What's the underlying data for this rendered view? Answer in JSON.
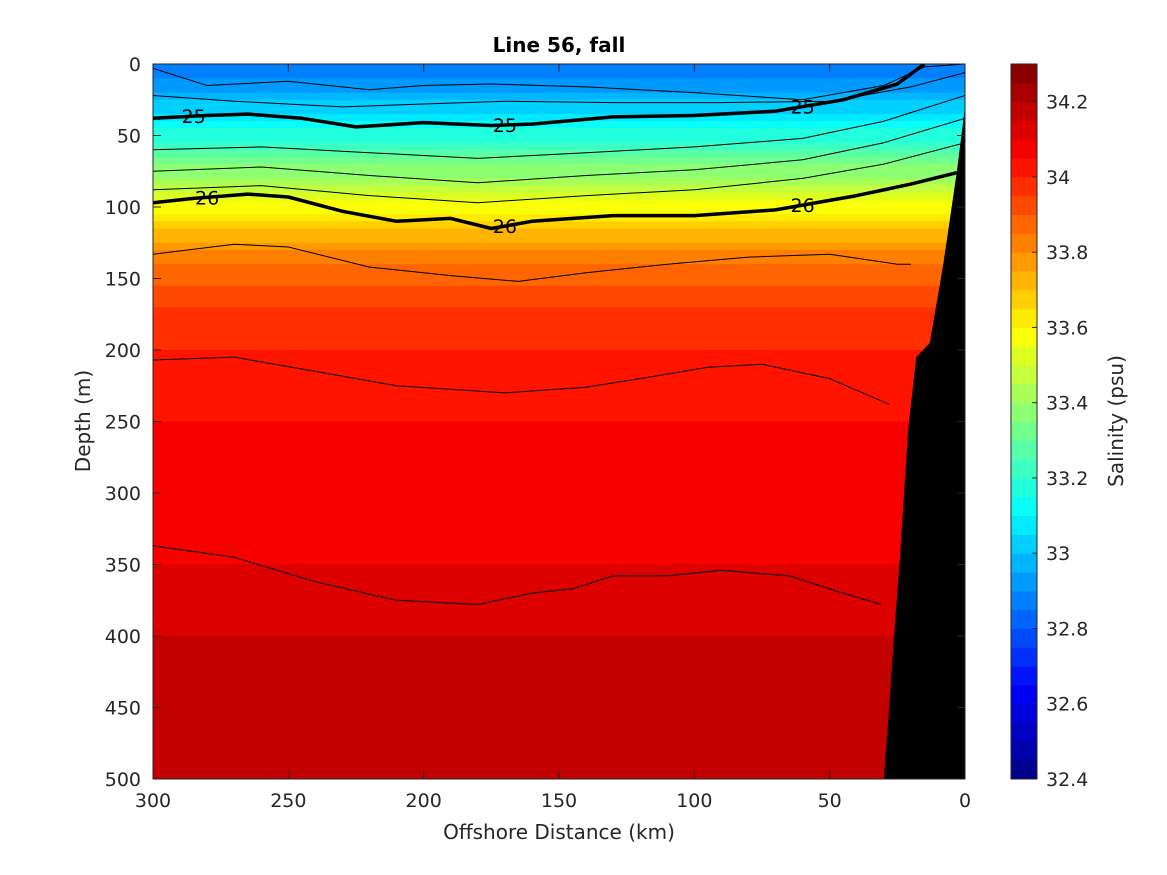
{
  "chart_data": {
    "type": "heatmap",
    "title": "Line 56, fall",
    "xlabel": "Offshore Distance (km)",
    "ylabel": "Depth (m)",
    "colorbar_label": "Salinity (psu)",
    "xlim": [
      300,
      0
    ],
    "ylim": [
      0,
      500
    ],
    "x_reversed": true,
    "y_reversed": true,
    "x_ticks": [
      300,
      250,
      200,
      150,
      100,
      50,
      0
    ],
    "y_ticks": [
      0,
      50,
      100,
      150,
      200,
      250,
      300,
      350,
      400,
      450,
      500
    ],
    "clim": [
      32.4,
      34.3
    ],
    "colorbar_ticks": [
      32.4,
      32.6,
      32.8,
      33,
      33.2,
      33.4,
      33.6,
      33.8,
      34,
      34.2
    ],
    "colorbar_levels": 38,
    "colormap": "jet",
    "salinity_profile": {
      "depths": [
        0,
        20,
        40,
        60,
        80,
        100,
        120,
        140,
        170,
        200,
        250,
        300,
        350,
        400,
        450,
        500
      ],
      "values": [
        32.85,
        32.95,
        33.1,
        33.25,
        33.42,
        33.58,
        33.72,
        33.86,
        33.95,
        34.0,
        34.05,
        34.08,
        34.1,
        34.15,
        34.18,
        34.2
      ]
    },
    "bathymetry": {
      "x": [
        0,
        3,
        8,
        13,
        18,
        21,
        24,
        26,
        28,
        30,
        33
      ],
      "depth": [
        30,
        75,
        140,
        195,
        205,
        255,
        345,
        395,
        450,
        500,
        500
      ]
    },
    "contours": [
      {
        "x": [
          300,
          280,
          250,
          220,
          200,
          175,
          140,
          100,
          60,
          30,
          15,
          0
        ],
        "depth": [
          3,
          15,
          12,
          18,
          15,
          14,
          16,
          20,
          25,
          15,
          2,
          0
        ],
        "bold": false
      },
      {
        "x": [
          300,
          270,
          230,
          200,
          170,
          130,
          90,
          50,
          20,
          0
        ],
        "depth": [
          22,
          26,
          30,
          28,
          26,
          27,
          27,
          26,
          16,
          6
        ],
        "bold": false
      },
      {
        "x": [
          300,
          280,
          265,
          245,
          225,
          200,
          175,
          160,
          130,
          100,
          70,
          45,
          25,
          15
        ],
        "depth": [
          38,
          36,
          35,
          38,
          44,
          41,
          43,
          42,
          37,
          36,
          33,
          25,
          14,
          0
        ],
        "bold": true,
        "label": "25",
        "label_x": [
          285,
          170,
          60
        ]
      },
      {
        "x": [
          300,
          260,
          220,
          180,
          140,
          100,
          60,
          30,
          0
        ],
        "depth": [
          60,
          58,
          62,
          66,
          62,
          58,
          52,
          40,
          22
        ],
        "bold": false
      },
      {
        "x": [
          300,
          260,
          220,
          180,
          140,
          100,
          60,
          30,
          0
        ],
        "depth": [
          75,
          72,
          78,
          83,
          78,
          74,
          67,
          55,
          38
        ],
        "bold": false
      },
      {
        "x": [
          300,
          260,
          220,
          180,
          140,
          100,
          60,
          30,
          0
        ],
        "depth": [
          88,
          85,
          92,
          97,
          92,
          88,
          80,
          70,
          55
        ],
        "bold": false
      },
      {
        "x": [
          300,
          285,
          265,
          250,
          230,
          210,
          190,
          175,
          160,
          130,
          100,
          70,
          40,
          20,
          3
        ],
        "depth": [
          97,
          94,
          91,
          93,
          103,
          110,
          108,
          115,
          110,
          106,
          106,
          102,
          92,
          84,
          76
        ],
        "bold": true,
        "label": "26",
        "label_x": [
          280,
          170,
          60
        ]
      },
      {
        "x": [
          300,
          270,
          250,
          220,
          190,
          165,
          140,
          110,
          80,
          50,
          25,
          20
        ],
        "depth": [
          133,
          126,
          128,
          142,
          148,
          152,
          146,
          140,
          135,
          133,
          140,
          140
        ],
        "bold": false
      },
      {
        "x": [
          300,
          270,
          240,
          210,
          170,
          140,
          120,
          95,
          75,
          50,
          28
        ],
        "depth": [
          207,
          205,
          215,
          225,
          230,
          226,
          220,
          212,
          210,
          220,
          238
        ],
        "bold": false
      },
      {
        "x": [
          300,
          270,
          240,
          210,
          180,
          160,
          145,
          130,
          110,
          90,
          65,
          45,
          31
        ],
        "depth": [
          337,
          345,
          362,
          375,
          378,
          370,
          367,
          358,
          358,
          354,
          358,
          370,
          378
        ],
        "bold": false
      }
    ]
  }
}
